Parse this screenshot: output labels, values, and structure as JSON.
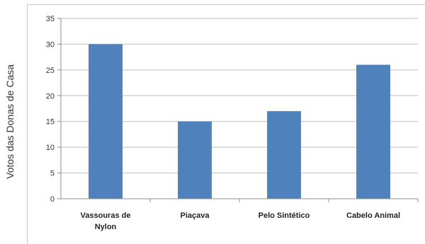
{
  "chart_data": {
    "type": "bar",
    "title": "",
    "xlabel": "",
    "ylabel": "Votos das Donas de Casa",
    "categories": [
      [
        "Vassouras de",
        "Nylon"
      ],
      [
        "Piaçava"
      ],
      [
        "Pelo Sintético"
      ],
      [
        "Cabelo Animal"
      ]
    ],
    "values": [
      30,
      15,
      17,
      26
    ],
    "ylim": [
      0,
      35
    ],
    "yticks": [
      0,
      5,
      10,
      15,
      20,
      25,
      30,
      35
    ],
    "grid": true,
    "legend": "none",
    "bar_color": "#4f81bd",
    "grid_color": "#bfbfbf",
    "axis_color": "#8c8c8c"
  }
}
